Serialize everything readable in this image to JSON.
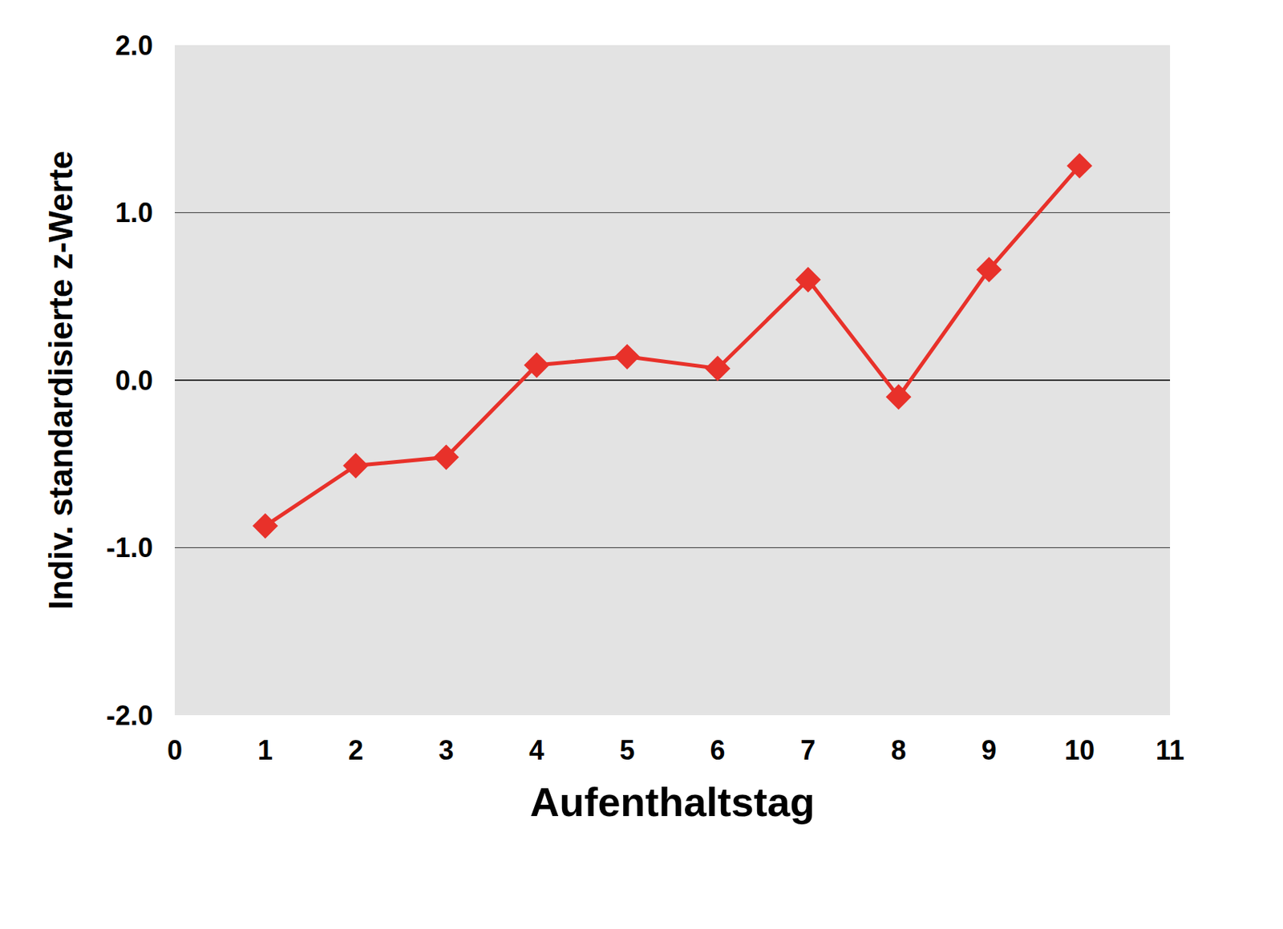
{
  "chart_data": {
    "type": "line",
    "xlabel": "Aufenthaltstag",
    "ylabel": "Indiv. standardisierte z-Werte",
    "x": [
      1,
      2,
      3,
      4,
      5,
      6,
      7,
      8,
      9,
      10
    ],
    "values": [
      -0.87,
      -0.51,
      -0.46,
      0.09,
      0.14,
      0.07,
      0.6,
      -0.1,
      0.66,
      1.28
    ],
    "color": "#e8312a",
    "marker": "diamond",
    "xlim": [
      0,
      11
    ],
    "xticks": [
      0,
      1,
      2,
      3,
      4,
      5,
      6,
      7,
      8,
      9,
      10,
      11
    ],
    "ylim": [
      -2,
      2
    ],
    "yticks": [
      {
        "value": -2,
        "label": "-2.0"
      },
      {
        "value": -1,
        "label": "-1.0"
      },
      {
        "value": 0,
        "label": "0.0"
      },
      {
        "value": 1,
        "label": "1.0"
      },
      {
        "value": 2,
        "label": "2.0"
      }
    ],
    "grid": true
  }
}
